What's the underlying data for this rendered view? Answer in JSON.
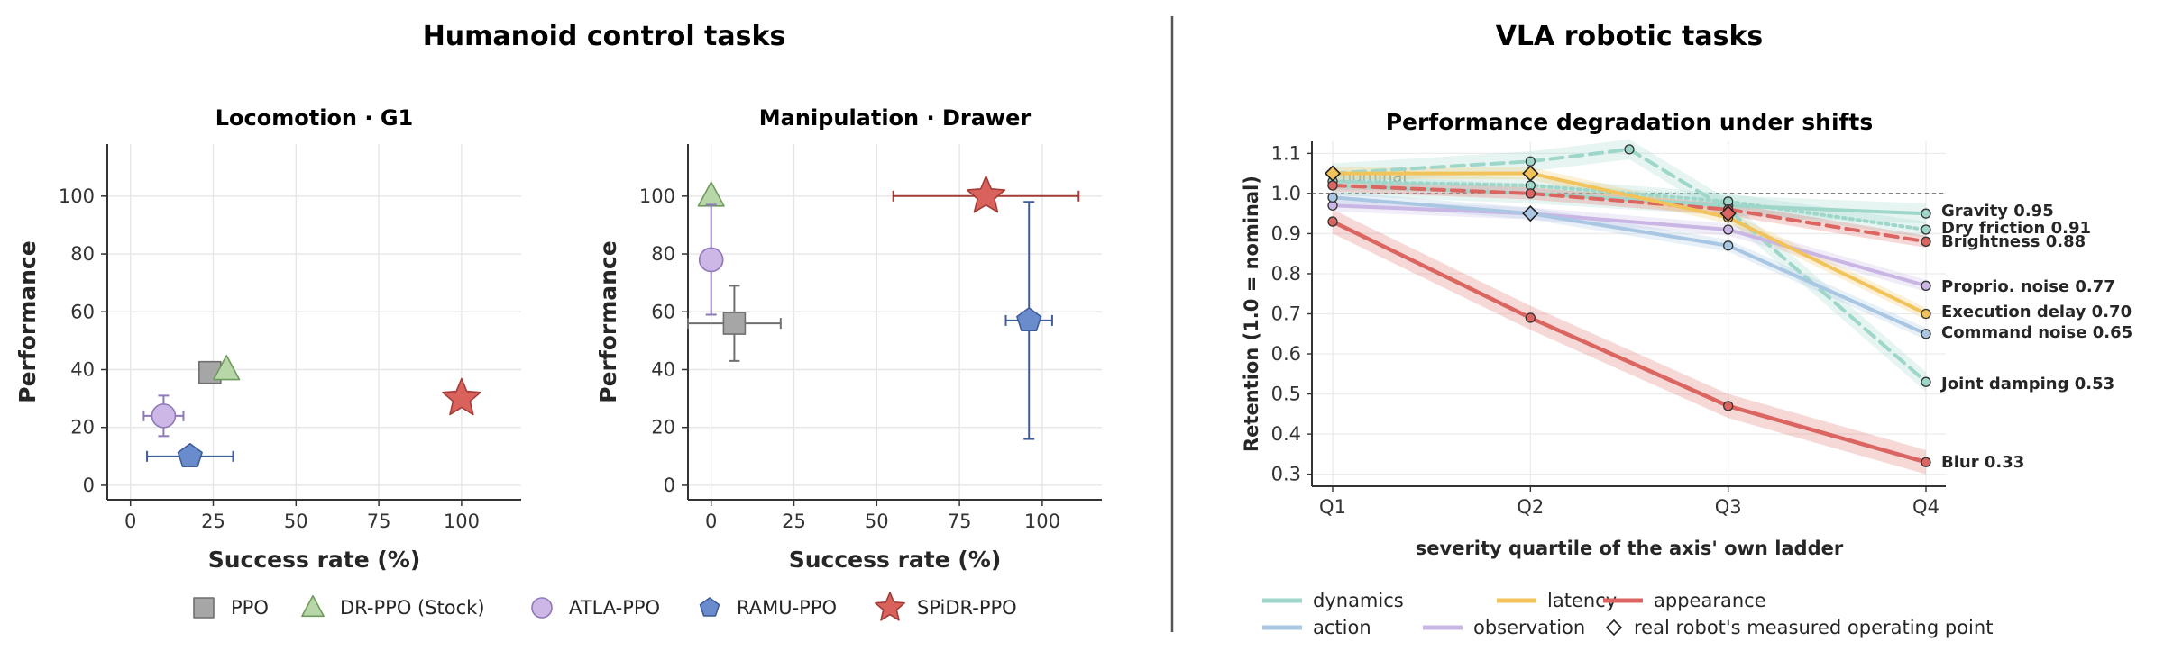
{
  "figure": {
    "left_title": "Humanoid control tasks",
    "right_title": "VLA robotic tasks"
  },
  "chart_data": [
    {
      "type": "scatter",
      "title": "Locomotion · G1",
      "xlabel": "Success rate (%)",
      "ylabel": "Performance",
      "xlim": [
        -7,
        118
      ],
      "ylim": [
        -5,
        118
      ],
      "xticks": [
        0,
        25,
        50,
        75,
        100
      ],
      "yticks": [
        0,
        20,
        40,
        60,
        80,
        100
      ],
      "grid": true,
      "points": [
        {
          "name": "PPO",
          "x": 24,
          "y": 39,
          "xerr": 3,
          "yerr": 1,
          "color": "#a6a6a6",
          "edge": "#6f6f6f",
          "marker": "square"
        },
        {
          "name": "DR-PPO (Stock)",
          "x": 29,
          "y": 40,
          "xerr": 0,
          "yerr": 0,
          "color": "#b7d7a8",
          "edge": "#6f9a5e",
          "marker": "triangle"
        },
        {
          "name": "ATLA-PPO",
          "x": 10,
          "y": 24,
          "xerr": 6,
          "yerr": 7,
          "color": "#cdb7e6",
          "edge": "#8f78b8",
          "marker": "circle"
        },
        {
          "name": "RAMU-PPO",
          "x": 18,
          "y": 10,
          "xerr": 13,
          "yerr": 0,
          "color": "#6b8ccc",
          "edge": "#3e5d9a",
          "marker": "pentagon"
        },
        {
          "name": "SPiDR-PPO",
          "x": 100,
          "y": 30,
          "xerr": 0,
          "yerr": 0,
          "color": "#d9625d",
          "edge": "#a23c37",
          "marker": "star"
        }
      ]
    },
    {
      "type": "scatter",
      "title": "Manipulation · Drawer",
      "xlabel": "Success rate (%)",
      "ylabel": "Performance",
      "xlim": [
        -7,
        118
      ],
      "ylim": [
        -5,
        118
      ],
      "xticks": [
        0,
        25,
        50,
        75,
        100
      ],
      "yticks": [
        0,
        20,
        40,
        60,
        80,
        100
      ],
      "grid": true,
      "points": [
        {
          "name": "PPO",
          "x": 7,
          "y": 56,
          "xerr": 14,
          "yerr": 13,
          "color": "#a6a6a6",
          "edge": "#6f6f6f",
          "marker": "square"
        },
        {
          "name": "DR-PPO (Stock)",
          "x": 0,
          "y": 100,
          "xerr": 0,
          "yerr": 0,
          "color": "#b7d7a8",
          "edge": "#6f9a5e",
          "marker": "triangle"
        },
        {
          "name": "ATLA-PPO",
          "x": 0,
          "y": 78,
          "xerr": 0,
          "yerr": 19,
          "color": "#cdb7e6",
          "edge": "#8f78b8",
          "marker": "circle"
        },
        {
          "name": "RAMU-PPO",
          "x": 96,
          "y": 57,
          "xerr": 7,
          "yerr": 41,
          "color": "#6b8ccc",
          "edge": "#3e5d9a",
          "marker": "pentagon"
        },
        {
          "name": "SPiDR-PPO",
          "x": 83,
          "y": 100,
          "xerr": 28,
          "yerr": 0,
          "color": "#d9625d",
          "edge": "#a23c37",
          "marker": "star"
        }
      ]
    },
    {
      "type": "line",
      "title": "Performance degradation under shifts",
      "xlabel": "severity quartile of the axis' own ladder",
      "ylabel": "Retention  (1.0 = nominal)",
      "categories": [
        "Q1",
        "Q2",
        "Q3",
        "Q4"
      ],
      "ylim": [
        0.27,
        1.13
      ],
      "yticks": [
        0.3,
        0.4,
        0.5,
        0.6,
        0.7,
        0.8,
        0.9,
        1.0,
        1.1
      ],
      "yticklabels": [
        "0.3",
        "0.4",
        "0.5",
        "0.6",
        "0.7",
        "0.8",
        "0.9",
        "1.0",
        "1.1"
      ],
      "reference_line": {
        "y": 1.0,
        "label": "nominal"
      },
      "grid": true,
      "series": [
        {
          "name": "Gravity",
          "end_label": "Gravity  0.95",
          "group": "dynamics",
          "color": "#9fd6ca",
          "dash": "solid",
          "x": [
            0,
            1,
            2,
            3
          ],
          "y": [
            1.02,
            1.0,
            0.97,
            0.95
          ],
          "band": 0.025
        },
        {
          "name": "Dry friction",
          "end_label": "Dry friction  0.91",
          "group": "dynamics",
          "color": "#9fd6ca",
          "dash": "dotted",
          "x": [
            0,
            1,
            2,
            3
          ],
          "y": [
            1.03,
            1.02,
            0.98,
            0.91
          ],
          "band": 0.02
        },
        {
          "name": "Joint damping",
          "end_label": "Joint damping  0.53",
          "group": "dynamics",
          "color": "#9fd6ca",
          "dash": "dashed",
          "x": [
            0,
            1,
            1.5,
            2,
            3
          ],
          "y": [
            1.05,
            1.08,
            1.11,
            0.96,
            0.53
          ],
          "band": 0.025
        },
        {
          "name": "Brightness",
          "end_label": "Brightness  0.88",
          "group": "appearance",
          "color": "#db6560",
          "dash": "dashed",
          "x": [
            0,
            1,
            2,
            3
          ],
          "y": [
            1.02,
            1.0,
            0.96,
            0.88
          ],
          "band": 0.015
        },
        {
          "name": "Proprio. noise",
          "end_label": "Proprio. noise  0.77",
          "group": "observation",
          "color": "#c9b6e4",
          "dash": "solid",
          "x": [
            0,
            1,
            2,
            3
          ],
          "y": [
            0.97,
            0.95,
            0.91,
            0.77
          ],
          "band": 0.015
        },
        {
          "name": "Execution delay",
          "end_label": "Execution delay  0.70",
          "group": "latency",
          "color": "#f2c35a",
          "dash": "solid",
          "x": [
            0,
            1,
            2,
            3
          ],
          "y": [
            1.05,
            1.05,
            0.94,
            0.7
          ],
          "band": 0.015
        },
        {
          "name": "Command noise",
          "end_label": "Command noise  0.65",
          "group": "action",
          "color": "#a9c6e3",
          "dash": "solid",
          "x": [
            0,
            1,
            2,
            3
          ],
          "y": [
            0.99,
            0.95,
            0.87,
            0.65
          ],
          "band": 0.015
        },
        {
          "name": "Blur",
          "end_label": "Blur  0.33",
          "group": "appearance",
          "color": "#db6560",
          "dash": "solid",
          "x": [
            0,
            1,
            2,
            3
          ],
          "y": [
            0.93,
            0.69,
            0.47,
            0.33
          ],
          "band": 0.03
        }
      ],
      "measured_points": [
        {
          "x": 0,
          "y": 1.05,
          "group": "latency"
        },
        {
          "x": 1,
          "y": 1.05,
          "group": "latency"
        },
        {
          "x": 1,
          "y": 0.95,
          "group": "action"
        },
        {
          "x": 2,
          "y": 0.95,
          "group": "appearance"
        }
      ],
      "legend": [
        {
          "label": "dynamics",
          "color": "#9fd6ca",
          "kind": "line"
        },
        {
          "label": "latency",
          "color": "#f2c35a",
          "kind": "line"
        },
        {
          "label": "appearance",
          "color": "#db6560",
          "kind": "line"
        },
        {
          "label": "action",
          "color": "#a9c6e3",
          "kind": "line"
        },
        {
          "label": "observation",
          "color": "#c9b6e4",
          "kind": "line"
        },
        {
          "label": "real robot's measured operating point",
          "color": "#ffffff",
          "kind": "diamond"
        }
      ]
    }
  ],
  "left_legend": [
    {
      "label": "PPO",
      "color": "#a6a6a6",
      "edge": "#6f6f6f",
      "marker": "square"
    },
    {
      "label": "DR-PPO (Stock)",
      "color": "#b7d7a8",
      "edge": "#6f9a5e",
      "marker": "triangle"
    },
    {
      "label": "ATLA-PPO",
      "color": "#cdb7e6",
      "edge": "#8f78b8",
      "marker": "circle"
    },
    {
      "label": "RAMU-PPO",
      "color": "#6b8ccc",
      "edge": "#3e5d9a",
      "marker": "pentagon"
    },
    {
      "label": "SPiDR-PPO",
      "color": "#d9625d",
      "edge": "#a23c37",
      "marker": "star"
    }
  ]
}
